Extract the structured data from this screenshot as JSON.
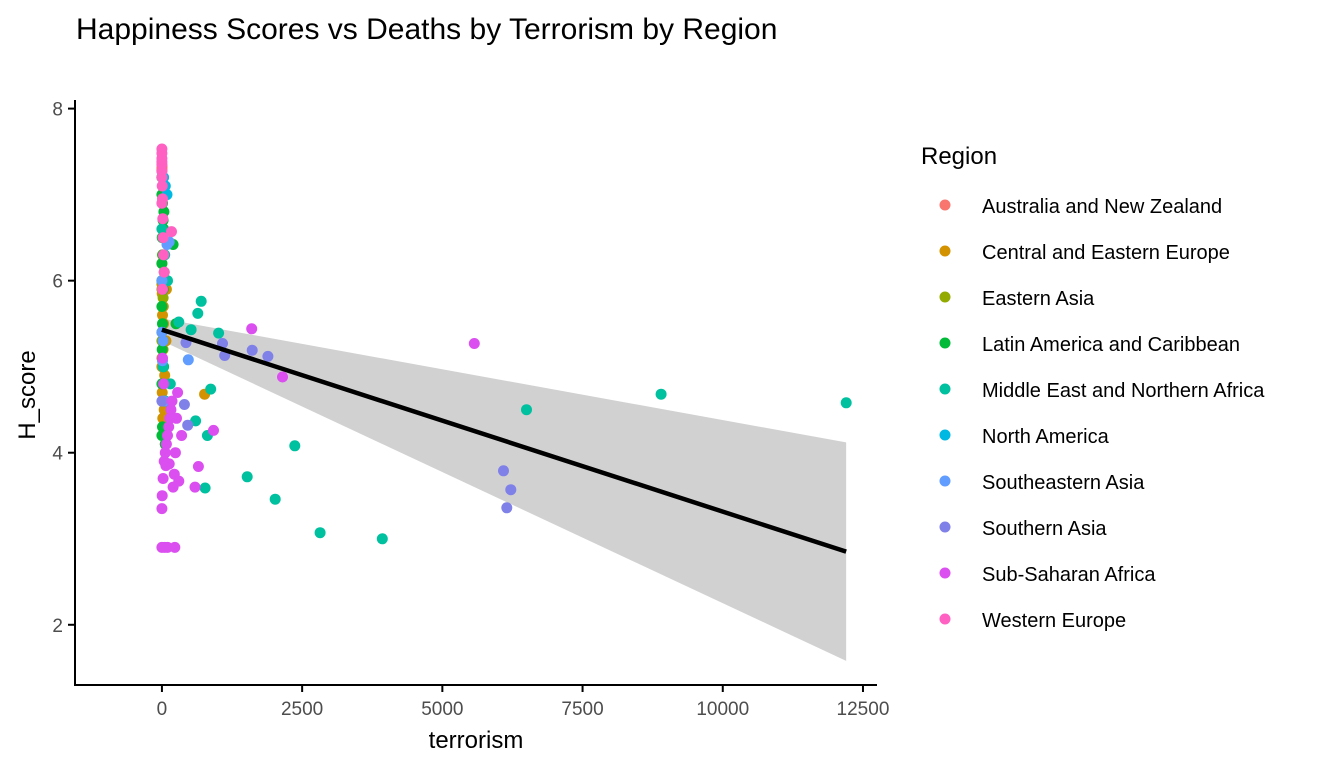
{
  "chart_data": {
    "type": "scatter",
    "title": "Happiness Scores vs Deaths by Terrorism by Region",
    "xlabel": "terrorism",
    "ylabel": "H_score",
    "xlim": [
      -1550,
      12750
    ],
    "ylim": [
      1.3,
      8.1
    ],
    "x_ticks": [
      {
        "value": 0,
        "label": "0"
      },
      {
        "value": 2500,
        "label": "2500"
      },
      {
        "value": 5000,
        "label": "5000"
      },
      {
        "value": 7500,
        "label": "7500"
      },
      {
        "value": 10000,
        "label": "10000"
      },
      {
        "value": 12500,
        "label": "12500"
      }
    ],
    "y_ticks": [
      {
        "value": 2,
        "label": "2"
      },
      {
        "value": 4,
        "label": "4"
      },
      {
        "value": 6,
        "label": "6"
      },
      {
        "value": 8,
        "label": "8"
      }
    ],
    "grid": false,
    "legend": {
      "title": "Region",
      "placement": "right"
    },
    "series": [
      {
        "name": "Australia and New Zealand",
        "color": "#F8766D",
        "points": [
          [
            0,
            7.31
          ],
          [
            0,
            7.28
          ],
          [
            0,
            7.29
          ],
          [
            1,
            7.33
          ]
        ]
      },
      {
        "name": "Central and Eastern Europe",
        "color": "#D39200",
        "points": [
          [
            0,
            5.96
          ],
          [
            5,
            5.85
          ],
          [
            10,
            5.6
          ],
          [
            20,
            5.2
          ],
          [
            50,
            4.9
          ],
          [
            40,
            4.5
          ],
          [
            15,
            4.4
          ],
          [
            60,
            4.1
          ],
          [
            0,
            5.1
          ],
          [
            30,
            5.5
          ],
          [
            80,
            5.9
          ],
          [
            10,
            6.0
          ],
          [
            0,
            6.2
          ],
          [
            760,
            4.68
          ],
          [
            25,
            5.7
          ],
          [
            70,
            5.3
          ],
          [
            5,
            4.7
          ],
          [
            0,
            5.0
          ]
        ]
      },
      {
        "name": "Eastern Asia",
        "color": "#93AA00",
        "points": [
          [
            0,
            5.9
          ],
          [
            10,
            6.3
          ],
          [
            0,
            5.4
          ],
          [
            20,
            5.8
          ],
          [
            5,
            6.0
          ],
          [
            0,
            5.3
          ]
        ]
      },
      {
        "name": "Latin America and Caribbean",
        "color": "#00BA38",
        "points": [
          [
            0,
            7.2
          ],
          [
            0,
            7.0
          ],
          [
            10,
            6.9
          ],
          [
            20,
            6.7
          ],
          [
            30,
            6.6
          ],
          [
            5,
            6.5
          ],
          [
            15,
            6.3
          ],
          [
            40,
            6.1
          ],
          [
            0,
            6.0
          ],
          [
            25,
            5.9
          ],
          [
            0,
            5.7
          ],
          [
            10,
            5.5
          ],
          [
            20,
            5.3
          ],
          [
            5,
            5.2
          ],
          [
            30,
            5.0
          ],
          [
            0,
            4.8
          ],
          [
            60,
            4.6
          ],
          [
            200,
            6.42
          ],
          [
            250,
            5.5
          ],
          [
            10,
            4.3
          ],
          [
            0,
            4.2
          ],
          [
            60,
            4.1
          ],
          [
            35,
            6.8
          ],
          [
            0,
            6.2
          ]
        ]
      },
      {
        "name": "Middle East and Northern Africa",
        "color": "#00C19F",
        "points": [
          [
            0,
            7.2
          ],
          [
            0,
            6.6
          ],
          [
            50,
            6.3
          ],
          [
            100,
            6.0
          ],
          [
            300,
            5.52
          ],
          [
            700,
            5.76
          ],
          [
            640,
            5.62
          ],
          [
            1010,
            5.39
          ],
          [
            520,
            5.43
          ],
          [
            870,
            4.74
          ],
          [
            810,
            4.2
          ],
          [
            770,
            3.59
          ],
          [
            600,
            4.37
          ],
          [
            1520,
            3.72
          ],
          [
            2020,
            3.46
          ],
          [
            2370,
            4.08
          ],
          [
            2820,
            3.07
          ],
          [
            3930,
            3.0
          ],
          [
            6500,
            4.5
          ],
          [
            8900,
            4.68
          ],
          [
            12200,
            4.58
          ],
          [
            40,
            4.6
          ],
          [
            20,
            5.0
          ],
          [
            150,
            4.8
          ]
        ]
      },
      {
        "name": "North America",
        "color": "#00B9E3",
        "points": [
          [
            60,
            7.1
          ],
          [
            90,
            7.0
          ],
          [
            30,
            7.2
          ]
        ]
      },
      {
        "name": "Southeastern Asia",
        "color": "#619CFF",
        "points": [
          [
            0,
            6.0
          ],
          [
            90,
            6.42
          ],
          [
            130,
            6.45
          ],
          [
            470,
            5.08
          ],
          [
            10,
            5.07
          ],
          [
            20,
            5.3
          ],
          [
            40,
            4.6
          ],
          [
            0,
            5.4
          ]
        ]
      },
      {
        "name": "Southern Asia",
        "color": "#7F80E8",
        "points": [
          [
            400,
            4.56
          ],
          [
            460,
            4.32
          ],
          [
            430,
            5.28
          ],
          [
            1080,
            5.27
          ],
          [
            1120,
            5.13
          ],
          [
            1610,
            5.19
          ],
          [
            1890,
            5.12
          ],
          [
            6090,
            3.79
          ],
          [
            6220,
            3.57
          ],
          [
            6150,
            3.36
          ],
          [
            0,
            4.6
          ]
        ]
      },
      {
        "name": "Sub-Saharan Africa",
        "color": "#DB4EF0",
        "points": [
          [
            0,
            2.9
          ],
          [
            50,
            2.9
          ],
          [
            100,
            2.9
          ],
          [
            230,
            2.9
          ],
          [
            0,
            3.35
          ],
          [
            5,
            3.5
          ],
          [
            20,
            3.7
          ],
          [
            40,
            3.9
          ],
          [
            60,
            4.0
          ],
          [
            80,
            4.1
          ],
          [
            100,
            4.2
          ],
          [
            120,
            4.3
          ],
          [
            140,
            4.4
          ],
          [
            160,
            4.5
          ],
          [
            180,
            4.6
          ],
          [
            200,
            3.6
          ],
          [
            220,
            3.75
          ],
          [
            240,
            4.0
          ],
          [
            260,
            4.4
          ],
          [
            280,
            4.7
          ],
          [
            300,
            3.67
          ],
          [
            350,
            4.2
          ],
          [
            590,
            3.6
          ],
          [
            650,
            3.84
          ],
          [
            920,
            4.26
          ],
          [
            1600,
            5.44
          ],
          [
            2150,
            4.88
          ],
          [
            5570,
            5.27
          ],
          [
            10,
            5.1
          ],
          [
            30,
            4.8
          ],
          [
            70,
            3.85
          ],
          [
            130,
            3.87
          ]
        ]
      },
      {
        "name": "Western Europe",
        "color": "#FF61C3",
        "points": [
          [
            0,
            7.53
          ],
          [
            0,
            7.48
          ],
          [
            0,
            7.42
          ],
          [
            0,
            7.38
          ],
          [
            0,
            7.35
          ],
          [
            0,
            7.27
          ],
          [
            0,
            7.2
          ],
          [
            5,
            7.1
          ],
          [
            10,
            6.95
          ],
          [
            15,
            6.72
          ],
          [
            20,
            6.5
          ],
          [
            30,
            6.3
          ],
          [
            40,
            6.1
          ],
          [
            170,
            6.57
          ],
          [
            0,
            6.9
          ],
          [
            10,
            5.9
          ]
        ]
      }
    ],
    "trendline": {
      "method": "lm",
      "x_range": [
        0,
        12200
      ],
      "y_start": 5.43,
      "y_end": 2.85,
      "band_start": [
        5.3,
        5.56
      ],
      "band_end": [
        1.58,
        4.12
      ],
      "color": "#000000",
      "band_color": "#cccccc"
    }
  }
}
